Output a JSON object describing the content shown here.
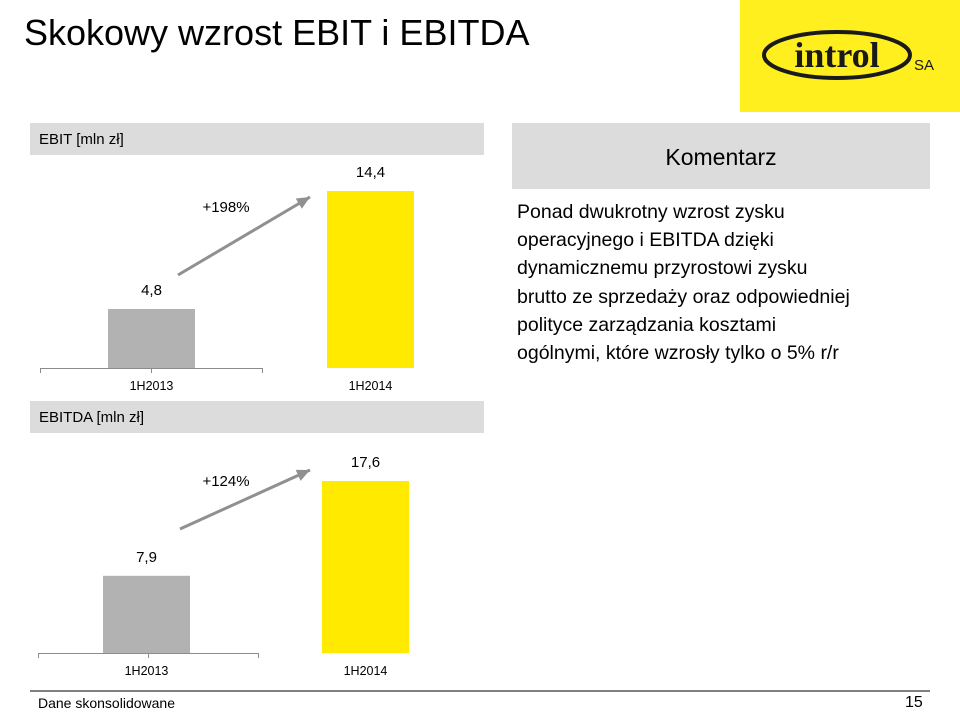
{
  "page": {
    "title": "Skokowy wzrost EBIT i EBITDA",
    "footer_note": "Dane skonsolidowane",
    "page_number": "15"
  },
  "logo": {
    "text": "introl",
    "suffix": "SA"
  },
  "colors": {
    "accent_yellow": "#ffea00",
    "bar_gray": "#b2b2b2",
    "header_gray": "#dcdcdc",
    "arrow_gray": "#909090",
    "logo_bg": "#ffef1e",
    "logo_ink": "#1a1a1a"
  },
  "comment": {
    "header": "Komentarz",
    "lines": [
      "Ponad dwukrotny wzrost zysku",
      "operacyjnego i EBITDA dzięki",
      "dynamicznemu przyrostowi zysku",
      "brutto ze sprzedaży oraz odpowiedniej",
      "polityce zarządzania kosztami",
      "ogólnymi, które wzrosły tylko o 5% r/r"
    ]
  },
  "chart_data": [
    {
      "type": "bar",
      "title": "EBIT [mln zł]",
      "categories": [
        "1H2013",
        "1H2014"
      ],
      "values": [
        4.8,
        14.4
      ],
      "value_labels": [
        "4,8",
        "14,4"
      ],
      "growth_label": "+198%",
      "ylim": [
        0,
        14.4
      ],
      "grid": false,
      "legend": "none"
    },
    {
      "type": "bar",
      "title": "EBITDA [mln zł]",
      "categories": [
        "1H2013",
        "1H2014"
      ],
      "values": [
        7.9,
        17.6
      ],
      "value_labels": [
        "7,9",
        "17,6"
      ],
      "growth_label": "+124%",
      "ylim": [
        0,
        17.6
      ],
      "grid": false,
      "legend": "none"
    }
  ]
}
